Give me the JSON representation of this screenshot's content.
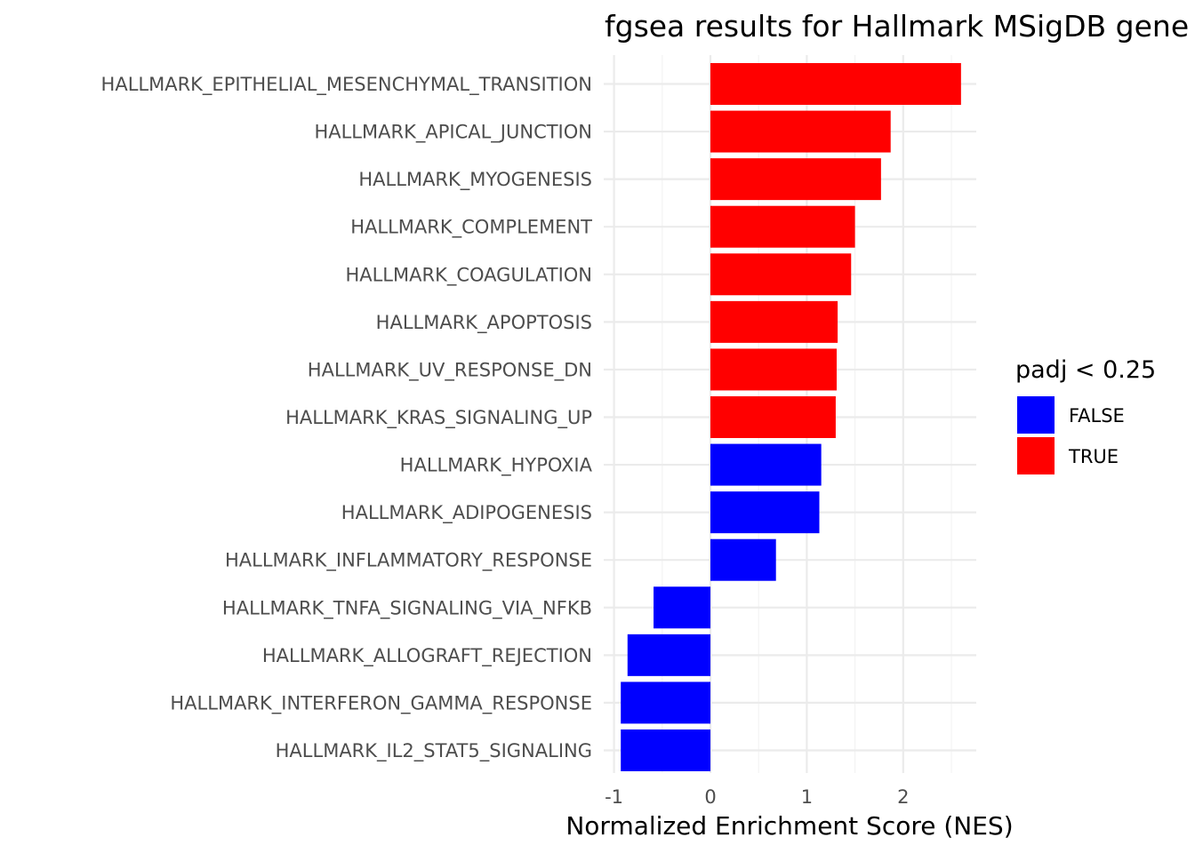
{
  "chart_data": {
    "type": "bar",
    "orientation": "horizontal",
    "title": "fgsea results for Hallmark MSigDB gene sets",
    "xlabel": "Normalized Enrichment Score (NES)",
    "ylabel": "",
    "xlim": [
      -1.1,
      2.78
    ],
    "x_ticks": [
      -1,
      0,
      1,
      2
    ],
    "x_tick_labels": [
      "-1",
      "0",
      "1",
      "2"
    ],
    "grid": true,
    "legend": {
      "title": "padj < 0.25",
      "placement": "right",
      "entries": [
        {
          "label": "FALSE",
          "color": "#0000ff"
        },
        {
          "label": "TRUE",
          "color": "#ff0000"
        }
      ]
    },
    "categories": [
      "HALLMARK_EPITHELIAL_MESENCHYMAL_TRANSITION",
      "HALLMARK_APICAL_JUNCTION",
      "HALLMARK_MYOGENESIS",
      "HALLMARK_COMPLEMENT",
      "HALLMARK_COAGULATION",
      "HALLMARK_APOPTOSIS",
      "HALLMARK_UV_RESPONSE_DN",
      "HALLMARK_KRAS_SIGNALING_UP",
      "HALLMARK_HYPOXIA",
      "HALLMARK_ADIPOGENESIS",
      "HALLMARK_INFLAMMATORY_RESPONSE",
      "HALLMARK_TNFA_SIGNALING_VIA_NFKB",
      "HALLMARK_ALLOGRAFT_REJECTION",
      "HALLMARK_INTERFERON_GAMMA_RESPONSE",
      "HALLMARK_IL2_STAT5_SIGNALING"
    ],
    "values": [
      2.6,
      1.87,
      1.77,
      1.5,
      1.46,
      1.32,
      1.31,
      1.3,
      1.15,
      1.13,
      0.68,
      -0.59,
      -0.86,
      -0.93,
      -0.93
    ],
    "padj_significant": [
      true,
      true,
      true,
      true,
      true,
      true,
      true,
      true,
      false,
      false,
      false,
      false,
      false,
      false,
      false
    ],
    "colors": {
      "FALSE": "#0000ff",
      "TRUE": "#ff0000"
    }
  }
}
